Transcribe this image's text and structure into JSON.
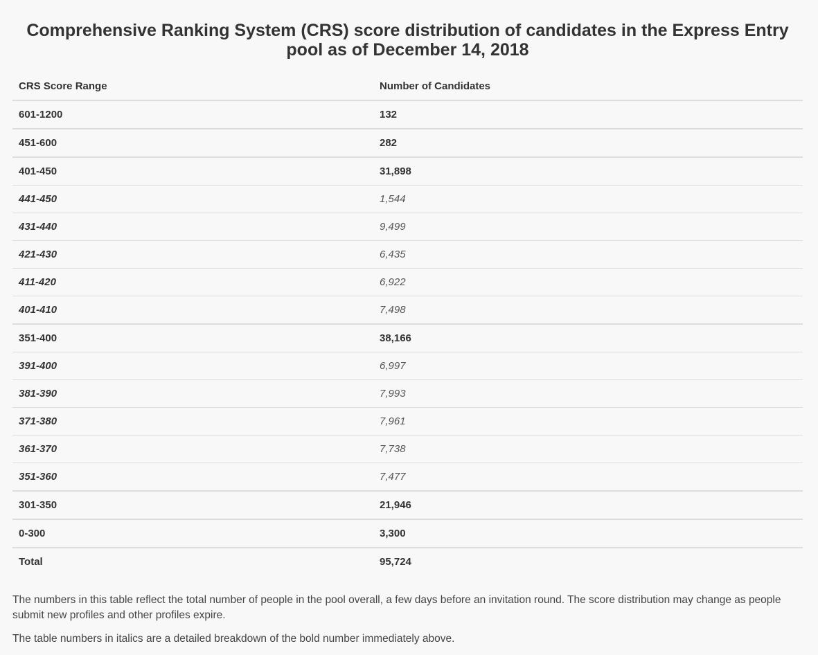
{
  "title": "Comprehensive Ranking System (CRS) score distribution of candidates in the Express Entry pool as of December 14, 2018",
  "table": {
    "headers": [
      "CRS Score Range",
      "Number of Candidates"
    ],
    "rows": [
      {
        "range": "601-1200",
        "count": "132",
        "style": "main"
      },
      {
        "range": "451-600",
        "count": "282",
        "style": "main"
      },
      {
        "range": "401-450",
        "count": "31,898",
        "style": "main"
      },
      {
        "range": "441-450",
        "count": "1,544",
        "style": "sub"
      },
      {
        "range": "431-440",
        "count": "9,499",
        "style": "sub"
      },
      {
        "range": "421-430",
        "count": "6,435",
        "style": "sub"
      },
      {
        "range": "411-420",
        "count": "6,922",
        "style": "sub"
      },
      {
        "range": "401-410",
        "count": "7,498",
        "style": "sub"
      },
      {
        "range": "351-400",
        "count": "38,166",
        "style": "main"
      },
      {
        "range": "391-400",
        "count": "6,997",
        "style": "sub"
      },
      {
        "range": "381-390",
        "count": "7,993",
        "style": "sub"
      },
      {
        "range": "371-380",
        "count": "7,961",
        "style": "sub"
      },
      {
        "range": "361-370",
        "count": "7,738",
        "style": "sub"
      },
      {
        "range": "351-360",
        "count": "7,477",
        "style": "sub"
      },
      {
        "range": "301-350",
        "count": "21,946",
        "style": "main"
      },
      {
        "range": "0-300",
        "count": "3,300",
        "style": "main"
      },
      {
        "range": "Total",
        "count": "95,724",
        "style": "main"
      }
    ]
  },
  "notes": [
    "The numbers in this table reflect the total number of people in the pool overall, a few days before an invitation round. The score distribution may change as people submit new profiles and other profiles expire.",
    "The table numbers in italics are a detailed breakdown of the bold number immediately above."
  ]
}
